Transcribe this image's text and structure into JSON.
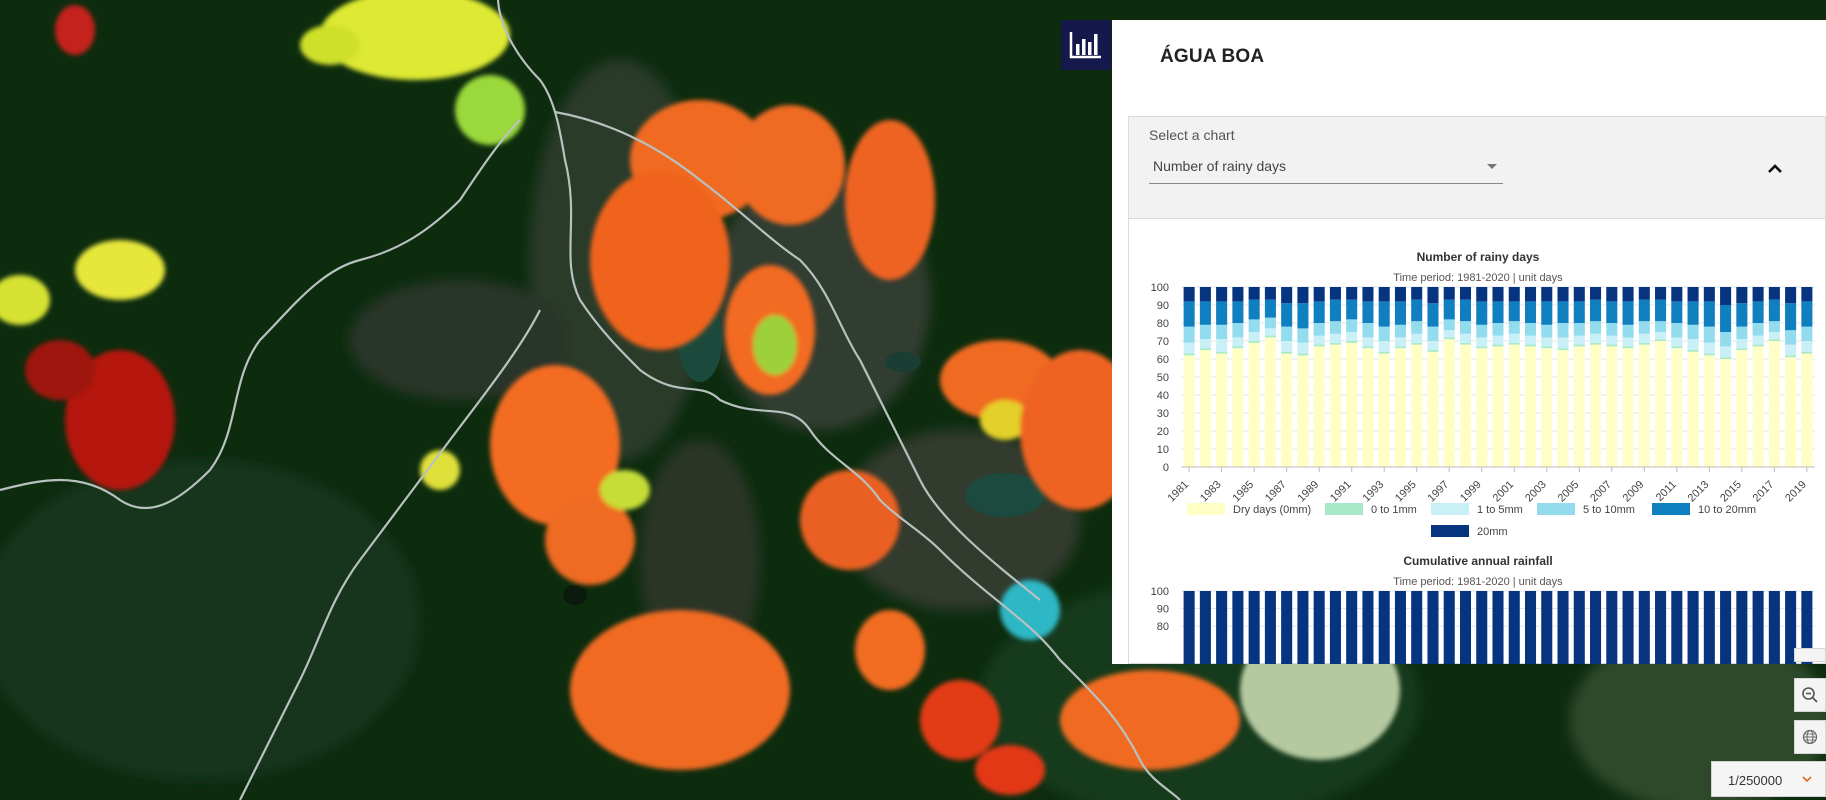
{
  "panel": {
    "title": "ÁGUA BOA"
  },
  "selector": {
    "label": "Select a chart",
    "value": "Number of rainy days"
  },
  "chart_data": [
    {
      "type": "bar",
      "stacked": true,
      "title": "Number of rainy days",
      "subtitle": "Time period: 1981-2020 | unit days",
      "ylim": [
        0,
        100
      ],
      "yticks": [
        0,
        10,
        20,
        30,
        40,
        50,
        60,
        70,
        80,
        90,
        100
      ],
      "tick_labels": [
        "1981",
        "1983",
        "1985",
        "1987",
        "1989",
        "1991",
        "1993",
        "1995",
        "1997",
        "1999",
        "2001",
        "2003",
        "2005",
        "2007",
        "2009",
        "2011",
        "2013",
        "2015",
        "2017",
        "2019"
      ],
      "legend_position": "bottom",
      "categories": [
        1981,
        1982,
        1983,
        1984,
        1985,
        1986,
        1987,
        1988,
        1989,
        1990,
        1991,
        1992,
        1993,
        1994,
        1995,
        1996,
        1997,
        1998,
        1999,
        2000,
        2001,
        2002,
        2003,
        2004,
        2005,
        2006,
        2007,
        2008,
        2009,
        2010,
        2011,
        2012,
        2013,
        2014,
        2015,
        2016,
        2017,
        2018,
        2019
      ],
      "series": [
        {
          "name": "Dry days (0mm)",
          "color": "#fffec4",
          "values": [
            62,
            65,
            63,
            66,
            69,
            72,
            63,
            62,
            67,
            68,
            69,
            66,
            63,
            66,
            68,
            64,
            71,
            68,
            66,
            67,
            68,
            67,
            66,
            65,
            67,
            68,
            67,
            66,
            68,
            70,
            66,
            64,
            62,
            60,
            65,
            67,
            70,
            61,
            63
          ]
        },
        {
          "name": "0 to 1mm",
          "color": "#a7e9c8",
          "values": [
            1,
            1,
            1,
            1,
            1,
            1,
            1,
            1,
            1,
            1,
            1,
            1,
            1,
            1,
            1,
            1,
            1,
            1,
            1,
            1,
            1,
            1,
            1,
            1,
            1,
            1,
            1,
            1,
            1,
            1,
            1,
            1,
            1,
            1,
            1,
            1,
            1,
            1,
            1
          ]
        },
        {
          "name": "1 to 5mm",
          "color": "#c9f0f7",
          "values": [
            6,
            5,
            7,
            5,
            5,
            4,
            6,
            6,
            5,
            5,
            5,
            5,
            6,
            5,
            5,
            5,
            4,
            5,
            5,
            5,
            5,
            5,
            5,
            6,
            5,
            5,
            5,
            5,
            5,
            4,
            5,
            6,
            6,
            6,
            5,
            5,
            4,
            6,
            6
          ]
        },
        {
          "name": "5 to 10mm",
          "color": "#93dcee",
          "values": [
            9,
            8,
            8,
            8,
            7,
            6,
            8,
            8,
            7,
            7,
            7,
            8,
            8,
            7,
            7,
            8,
            6,
            7,
            7,
            7,
            7,
            7,
            7,
            8,
            7,
            7,
            7,
            7,
            7,
            6,
            8,
            8,
            9,
            8,
            7,
            7,
            6,
            8,
            8
          ]
        },
        {
          "name": "10 to 20mm",
          "color": "#0f7fc0",
          "values": [
            14,
            13,
            13,
            12,
            11,
            10,
            13,
            14,
            12,
            12,
            11,
            12,
            14,
            13,
            12,
            13,
            11,
            12,
            13,
            12,
            11,
            12,
            13,
            12,
            12,
            12,
            12,
            13,
            12,
            12,
            12,
            13,
            14,
            15,
            13,
            12,
            12,
            15,
            14
          ]
        },
        {
          "name": "20mm",
          "color": "#07347f",
          "values": [
            8,
            8,
            8,
            8,
            7,
            7,
            9,
            9,
            8,
            7,
            7,
            8,
            8,
            8,
            7,
            9,
            7,
            7,
            8,
            8,
            8,
            8,
            8,
            8,
            8,
            7,
            8,
            8,
            7,
            7,
            8,
            8,
            8,
            10,
            9,
            8,
            7,
            9,
            8
          ]
        }
      ]
    },
    {
      "type": "bar",
      "title": "Cumulative annual rainfall",
      "subtitle": "Time period: 1981-2020 | unit days",
      "ylim": [
        0,
        100
      ],
      "yticks": [
        80,
        90,
        100
      ],
      "series": [
        {
          "color": "#07347f",
          "values": [
            100,
            100,
            100,
            100,
            100,
            100,
            100,
            100,
            100,
            100,
            100,
            100,
            100,
            100,
            100,
            100,
            100,
            100,
            100,
            100,
            100,
            100,
            100,
            100,
            100,
            100,
            100,
            100,
            100,
            100,
            100,
            100,
            100,
            100,
            100,
            100,
            100,
            100,
            100
          ]
        }
      ]
    }
  ],
  "map": {
    "scale": "1/250000"
  },
  "icons": {
    "chart_toggle": "bar-chart-icon",
    "collapse": "chevron-up-icon",
    "zoom_out": "zoom-out-icon",
    "globe": "globe-icon",
    "scale_dropdown": "chevron-down-icon"
  },
  "colors": {
    "panel_button": "#14184a",
    "river": "#b9c1c0",
    "forest": "#0f2e10"
  }
}
